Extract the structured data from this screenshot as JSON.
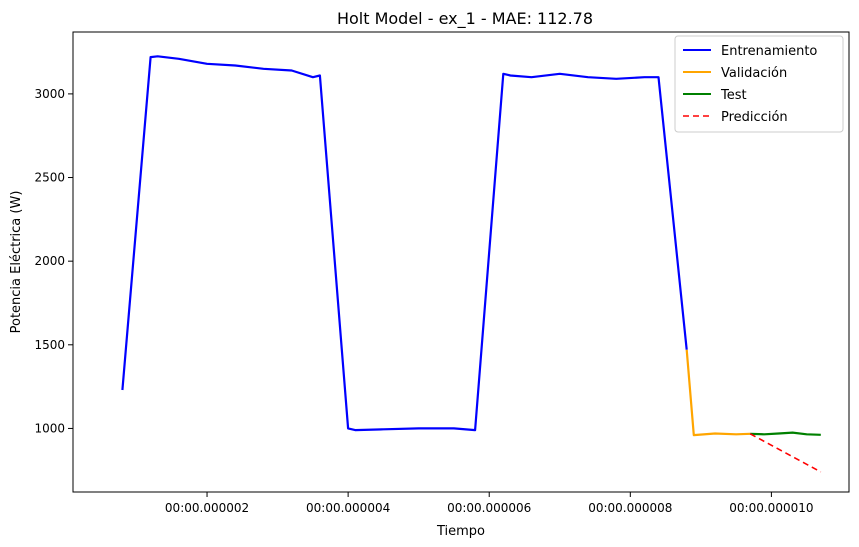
{
  "chart_data": {
    "type": "line",
    "title": "Holt Model - ex_1 - MAE: 112.78",
    "xlabel": "Tiempo",
    "ylabel": "Potencia Eléctrica (W)",
    "xlim": [
      1e-07,
      1.11e-05
    ],
    "ylim": [
      620,
      3370
    ],
    "x_ticks": [
      {
        "value": 2e-06,
        "label": "00:00.000002"
      },
      {
        "value": 4e-06,
        "label": "00:00.000004"
      },
      {
        "value": 6e-06,
        "label": "00:00.000006"
      },
      {
        "value": 8e-06,
        "label": "00:00.000008"
      },
      {
        "value": 1e-05,
        "label": "00:00.000010"
      }
    ],
    "y_ticks": [
      1000,
      1500,
      2000,
      2500,
      3000
    ],
    "grid": false,
    "legend_position": "top-right",
    "series": [
      {
        "name": "Entrenamiento",
        "color": "#0000ff",
        "style": "solid",
        "x": [
          8e-07,
          1.2e-06,
          1.3e-06,
          1.6e-06,
          2e-06,
          2.4e-06,
          2.8e-06,
          3.2e-06,
          3.5e-06,
          3.6e-06,
          4e-06,
          4.1e-06,
          4.5e-06,
          5e-06,
          5.5e-06,
          5.8e-06,
          6.2e-06,
          6.3e-06,
          6.6e-06,
          7e-06,
          7.4e-06,
          7.8e-06,
          8.2e-06,
          8.4e-06,
          8.8e-06
        ],
        "y": [
          1230,
          3220,
          3225,
          3210,
          3180,
          3170,
          3150,
          3140,
          3100,
          3110,
          1000,
          990,
          995,
          1000,
          1000,
          990,
          3120,
          3110,
          3100,
          3120,
          3100,
          3090,
          3100,
          3100,
          1470
        ]
      },
      {
        "name": "Validación",
        "color": "#ffa500",
        "style": "solid",
        "x": [
          8.8e-06,
          8.9e-06,
          9.2e-06,
          9.5e-06,
          9.7e-06
        ],
        "y": [
          1470,
          960,
          970,
          965,
          968
        ]
      },
      {
        "name": "Test",
        "color": "#008000",
        "style": "solid",
        "x": [
          9.7e-06,
          9.9e-06,
          1.01e-05,
          1.03e-05,
          1.05e-05,
          1.07e-05
        ],
        "y": [
          968,
          965,
          970,
          975,
          965,
          962
        ]
      },
      {
        "name": "Predicción",
        "color": "#ff0000",
        "style": "dashed",
        "x": [
          9.7e-06,
          1.07e-05
        ],
        "y": [
          968,
          740
        ]
      }
    ]
  }
}
